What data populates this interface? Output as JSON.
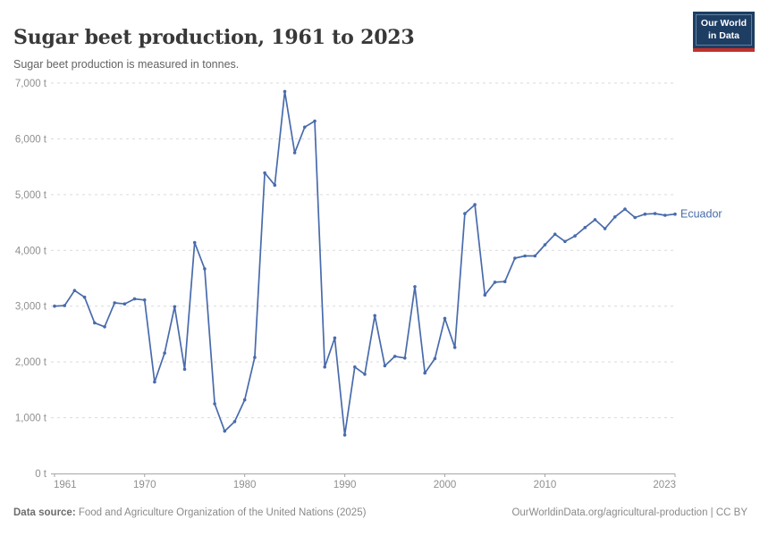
{
  "header": {
    "title": "Sugar beet production, 1961 to 2023",
    "subtitle": "Sugar beet production is measured in tonnes.",
    "logo": {
      "line1": "Our World",
      "line2": "in Data"
    }
  },
  "chart_data": {
    "type": "line",
    "title": "Sugar beet production, 1961 to 2023",
    "unit": "t",
    "xlabel": "",
    "ylabel": "",
    "ylim": [
      0,
      7000
    ],
    "yticks": [
      0,
      1000,
      2000,
      3000,
      4000,
      5000,
      6000,
      7000
    ],
    "ytick_suffix": " t",
    "xticks": [
      1961,
      1970,
      1980,
      1990,
      2000,
      2010,
      2023
    ],
    "grid": "horizontal-dashed",
    "legend_position": "end-of-line",
    "series": [
      {
        "name": "Ecuador",
        "color": "#486BAB",
        "x": [
          1961,
          1962,
          1963,
          1964,
          1965,
          1966,
          1967,
          1968,
          1969,
          1970,
          1971,
          1972,
          1973,
          1974,
          1975,
          1976,
          1977,
          1978,
          1979,
          1980,
          1981,
          1982,
          1983,
          1984,
          1985,
          1986,
          1987,
          1988,
          1989,
          1990,
          1991,
          1992,
          1993,
          1994,
          1995,
          1996,
          1997,
          1998,
          1999,
          2000,
          2001,
          2002,
          2003,
          2004,
          2005,
          2006,
          2007,
          2008,
          2009,
          2010,
          2011,
          2012,
          2013,
          2014,
          2015,
          2016,
          2017,
          2018,
          2019,
          2020,
          2021,
          2022,
          2023
        ],
        "values": [
          3000,
          3010,
          3280,
          3160,
          2700,
          2630,
          3060,
          3040,
          3130,
          3110,
          1640,
          2160,
          2990,
          1870,
          4140,
          3670,
          1250,
          760,
          930,
          1320,
          2080,
          5390,
          5170,
          6850,
          5750,
          6210,
          6320,
          1910,
          2430,
          690,
          1910,
          1780,
          2830,
          1930,
          2100,
          2070,
          3350,
          1800,
          2060,
          2780,
          2260,
          4660,
          4820,
          3200,
          3430,
          3440,
          3860,
          3900,
          3900,
          4100,
          4290,
          4160,
          4260,
          4410,
          4550,
          4390,
          4600,
          4740,
          4590,
          4650,
          4660,
          4630,
          4650
        ]
      }
    ]
  },
  "footer": {
    "datasource_label": "Data source:",
    "datasource_text": " Food and Agriculture Organization of the United Nations (2025)",
    "link_text": "OurWorldinData.org/agricultural-production | CC BY"
  },
  "colors": {
    "accent_line": "#486BAB",
    "logo_navy": "#1d3d63",
    "logo_red": "#c2302a",
    "grid": "#dadada",
    "axis": "#a5a5a5",
    "tick_text": "#8f8f8f",
    "title_text": "#383838",
    "subtitle_text": "#636363"
  }
}
